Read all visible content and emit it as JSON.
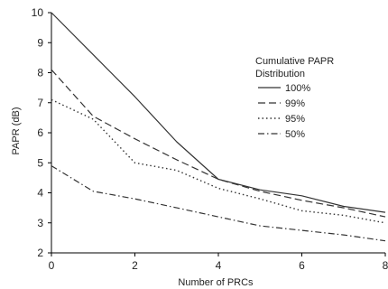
{
  "chart_data": {
    "type": "line",
    "xlabel": "Number of PRCs",
    "ylabel": "PAPR (dB)",
    "xlim": [
      0,
      8
    ],
    "ylim": [
      2,
      10
    ],
    "xticks": [
      0,
      2,
      4,
      6,
      8
    ],
    "yticks": [
      2,
      3,
      4,
      5,
      6,
      7,
      8,
      9,
      10
    ],
    "grid": false,
    "legend": {
      "title_lines": [
        "Cumulative PAPR",
        "Distribution"
      ],
      "placement": "top-right"
    },
    "series": [
      {
        "name": "100%",
        "style": "solid",
        "x": [
          0,
          1,
          2,
          3,
          4,
          5,
          6,
          7,
          8
        ],
        "y": [
          10.0,
          8.6,
          7.2,
          5.7,
          4.45,
          4.1,
          3.9,
          3.55,
          3.35
        ]
      },
      {
        "name": "99%",
        "style": "dashed",
        "x": [
          0,
          1,
          2,
          3,
          4,
          5,
          6,
          7,
          8
        ],
        "y": [
          8.1,
          6.55,
          5.8,
          5.1,
          4.45,
          4.05,
          3.75,
          3.5,
          3.2
        ]
      },
      {
        "name": "95%",
        "style": "dotted",
        "x": [
          0,
          1,
          2,
          3,
          4,
          5,
          6,
          7,
          8
        ],
        "y": [
          7.1,
          6.45,
          5.0,
          4.75,
          4.15,
          3.8,
          3.4,
          3.25,
          3.0
        ]
      },
      {
        "name": "50%",
        "style": "dashdot",
        "x": [
          0,
          1,
          2,
          3,
          4,
          5,
          6,
          7,
          8
        ],
        "y": [
          4.9,
          4.05,
          3.8,
          3.5,
          3.2,
          2.9,
          2.75,
          2.6,
          2.4
        ]
      }
    ]
  }
}
